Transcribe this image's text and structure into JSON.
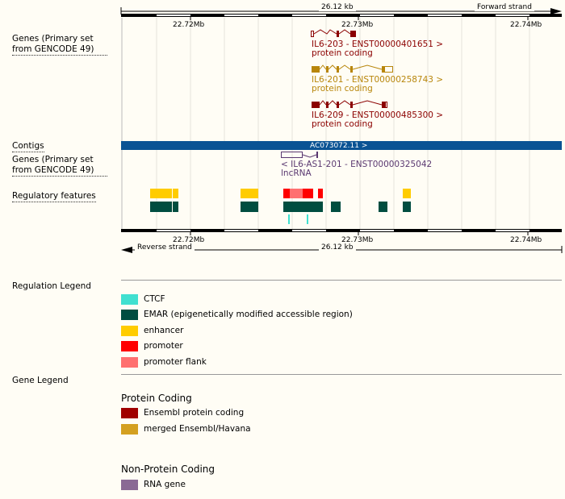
{
  "ruler": {
    "length_label": "26.12 kb",
    "forward_strand": "Forward strand",
    "reverse_strand": "Reverse strand",
    "ticks": [
      "22.72Mb",
      "22.73Mb",
      "22.74Mb"
    ]
  },
  "tracks": {
    "genes_primary": "Genes (Primary set from GENCODE 49)",
    "contigs": "Contigs",
    "genes_reverse": "Genes (Primary set from GENCODE 49)",
    "regulatory": "Regulatory features"
  },
  "genes": [
    {
      "name": "IL6-203 - ENST00000401651 >",
      "biotype": "protein coding",
      "color": "#8b0000"
    },
    {
      "name": "IL6-201 - ENST00000258743 >",
      "biotype": "protein coding",
      "color": "#b8860b"
    },
    {
      "name": "IL6-209 - ENST00000485300 >",
      "biotype": "protein coding",
      "color": "#8b0000"
    }
  ],
  "contig": {
    "label": "AC073072.11 >",
    "color": "#0a5394"
  },
  "reverse_gene": {
    "name": "< IL6-AS1-201 - ENST00000325042",
    "biotype": "lncRNA",
    "color": "#5a3870"
  },
  "regulation_legend": {
    "title": "Regulation Legend",
    "items": [
      {
        "label": "CTCF",
        "color": "#40e0d0"
      },
      {
        "label": "EMAR (epigenetically modified accessible region)",
        "color": "#004d40"
      },
      {
        "label": "enhancer",
        "color": "#ffcc00"
      },
      {
        "label": "promoter",
        "color": "#ff0000"
      },
      {
        "label": "promoter flank",
        "color": "#ff7070"
      }
    ]
  },
  "gene_legend": {
    "title": "Gene Legend",
    "protein_coding": {
      "title": "Protein Coding",
      "items": [
        {
          "label": "Ensembl protein coding",
          "color": "#a00000"
        },
        {
          "label": "merged Ensembl/Havana",
          "color": "#d4a020"
        }
      ]
    },
    "non_protein_coding": {
      "title": "Non-Protein Coding",
      "items": [
        {
          "label": "RNA gene",
          "color": "#8a6a94"
        }
      ]
    }
  }
}
